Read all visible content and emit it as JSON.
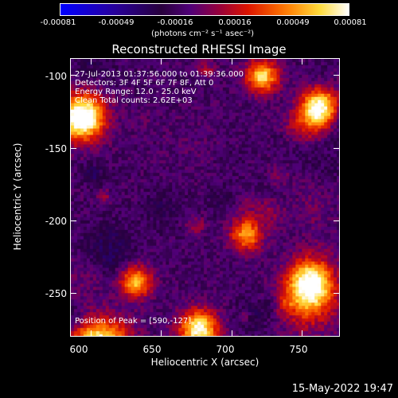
{
  "chart_data": {
    "type": "heatmap",
    "title": "Reconstructed RHESSI Image",
    "xlabel": "Heliocentric X (arcsec)",
    "ylabel": "Heliocentric Y (arcsec)",
    "xlim": [
      585,
      777
    ],
    "ylim": [
      -280,
      -88
    ],
    "x_ticks": [
      600,
      650,
      700,
      750
    ],
    "y_ticks": [
      -100,
      -150,
      -200,
      -250
    ],
    "colorbar": {
      "ticks": [
        "-0.00081",
        "-0.00049",
        "-0.00016",
        "0.00016",
        "0.00049",
        "0.00081"
      ],
      "unit": "(photons cm⁻² s⁻¹ asec⁻²)",
      "range": [
        -0.00081,
        0.00081
      ]
    },
    "annotations": {
      "time_range": "27-Jul-2013 01:37:56.000 to 01:39:36.000",
      "detectors": "Detectors: 3F 4F 5F 6F 7F 8F, Att 0",
      "energy": "Energy Range: 12.0 - 25.0 keV",
      "clean": "Clean    Total counts: 2.62E+03",
      "peak": "Position of Peak = [590,-127]"
    }
  },
  "footer": {
    "timestamp": "15-May-2022 19:47"
  }
}
